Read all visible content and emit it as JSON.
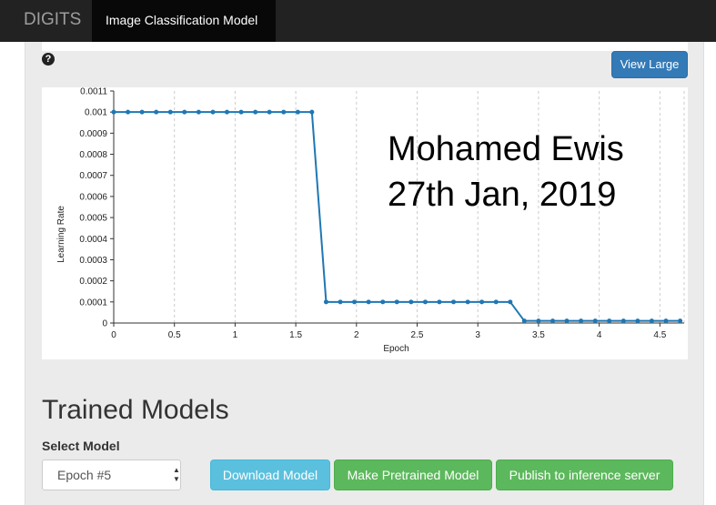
{
  "navbar": {
    "brand": "DIGITS",
    "active_tab": "Image Classification Model"
  },
  "help": {
    "icon": "question-circle-icon",
    "glyph": "?"
  },
  "view_large_label": "View Large",
  "overlay_text": {
    "line1": "Mohamed Ewis",
    "line2": "27th Jan, 2019"
  },
  "chart_data": {
    "type": "line",
    "xlabel": "Epoch",
    "ylabel": "Learning Rate",
    "xlim": [
      0,
      4.7
    ],
    "ylim": [
      0,
      0.0011
    ],
    "x_ticks": [
      "0",
      "0.5",
      "1",
      "1.5",
      "2",
      "2.5",
      "3",
      "3.5",
      "4",
      "4.5"
    ],
    "y_ticks": [
      "0",
      "0.0001",
      "0.0002",
      "0.0003",
      "0.0004",
      "0.0005",
      "0.0006",
      "0.0007",
      "0.0008",
      "0.0009",
      "0.001",
      "0.0011"
    ],
    "grid": "vertical-dashed",
    "color": "#1f77b4",
    "series": [
      {
        "x": [
          0,
          0.117,
          0.233,
          0.35,
          0.467,
          0.583,
          0.7,
          0.817,
          0.933,
          1.05,
          1.167,
          1.283,
          1.4,
          1.517,
          1.633,
          1.75,
          1.867,
          1.983,
          2.1,
          2.217,
          2.333,
          2.45,
          2.567,
          2.683,
          2.8,
          2.917,
          3.033,
          3.15,
          3.267,
          3.383,
          3.5,
          3.617,
          3.733,
          3.85,
          3.967,
          4.083,
          4.2,
          4.317,
          4.433,
          4.55,
          4.667
        ],
        "y": [
          0.001,
          0.001,
          0.001,
          0.001,
          0.001,
          0.001,
          0.001,
          0.001,
          0.001,
          0.001,
          0.001,
          0.001,
          0.001,
          0.001,
          0.001,
          0.0001,
          0.0001,
          0.0001,
          0.0001,
          0.0001,
          0.0001,
          0.0001,
          0.0001,
          0.0001,
          0.0001,
          0.0001,
          0.0001,
          0.0001,
          0.0001,
          1e-05,
          1e-05,
          1e-05,
          1e-05,
          1e-05,
          1e-05,
          1e-05,
          1e-05,
          1e-05,
          1e-05,
          1e-05,
          1e-05
        ]
      }
    ]
  },
  "trained_models": {
    "title": "Trained Models",
    "select_label": "Select Model",
    "selected_value": "Epoch #5",
    "download_label": "Download Model",
    "pretrained_label": "Make Pretrained Model",
    "publish_label": "Publish to inference server"
  }
}
